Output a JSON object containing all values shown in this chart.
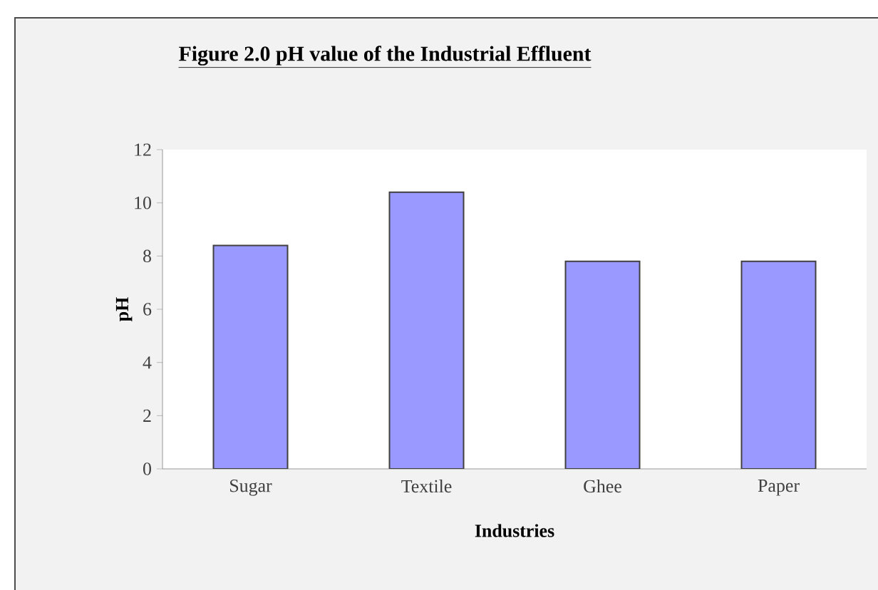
{
  "chart_data": {
    "type": "bar",
    "title": "**Figure 2.0 pH value of the Industrial Effluent**",
    "xlabel": "Industries",
    "ylabel": "pH",
    "categories": [
      "Sugar",
      "Textile",
      "Ghee",
      "Paper"
    ],
    "values": [
      8.4,
      10.4,
      7.8,
      7.8
    ],
    "color": "#9999ff",
    "ylim": [
      0,
      12
    ],
    "yticks": [
      0,
      2,
      4,
      6,
      8,
      10,
      12
    ],
    "grid": false
  }
}
